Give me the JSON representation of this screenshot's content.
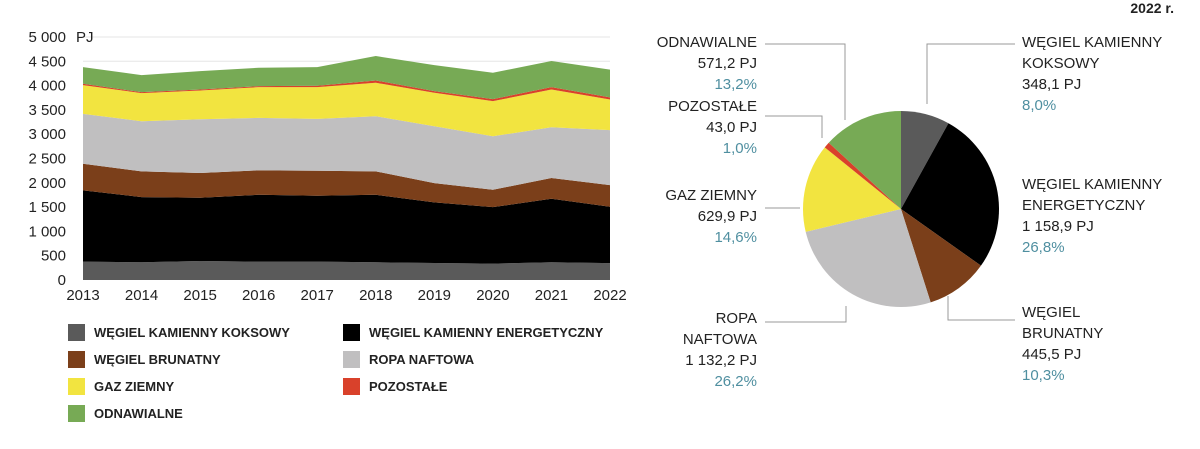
{
  "chart_data": [
    {
      "type": "area",
      "stacked": true,
      "unit_label": "PJ",
      "categories": [
        "2013",
        "2014",
        "2015",
        "2016",
        "2017",
        "2018",
        "2019",
        "2020",
        "2021",
        "2022"
      ],
      "ylim": [
        0,
        5000
      ],
      "yticks": [
        "0",
        "500",
        "1 000",
        "1 500",
        "2 000",
        "2 500",
        "3 000",
        "3 500",
        "4 000",
        "4 500",
        "5 000"
      ],
      "yticks_values": [
        0,
        500,
        1000,
        1500,
        2000,
        2500,
        3000,
        3500,
        4000,
        4500,
        5000
      ],
      "grid": true,
      "legend_placement": "bottom",
      "series": [
        {
          "name": "WĘGIEL KAMIENNY KOKSOWY",
          "color": "#5a5a5a",
          "values": [
            378,
            365,
            392,
            378,
            378,
            365,
            351,
            337,
            365,
            348.1
          ]
        },
        {
          "name": "WĘGIEL KAMIENNY ENERGETYCZNY",
          "color": "#000000",
          "values": [
            1465,
            1341,
            1300,
            1376,
            1355,
            1389,
            1245,
            1162,
            1306,
            1158.9
          ]
        },
        {
          "name": "WĘGIEL BRUNATNY",
          "color": "#7b3f1a",
          "values": [
            550,
            529,
            509,
            502,
            516,
            481,
            398,
            358,
            427,
            445.5
          ]
        },
        {
          "name": "ROPA NAFTOWA",
          "color": "#c0bfc0",
          "values": [
            1025,
            1032,
            1107,
            1080,
            1066,
            1135,
            1170,
            1100,
            1045,
            1132.2
          ]
        },
        {
          "name": "GAZ ZIEMNY",
          "color": "#f2e440",
          "values": [
            592,
            578,
            592,
            632,
            653,
            688,
            688,
            723,
            777,
            629.9
          ]
        },
        {
          "name": "POZOSTAŁE",
          "color": "#d9412b",
          "values": [
            27,
            20,
            20,
            21,
            28,
            48,
            34,
            41,
            48,
            43.0
          ]
        },
        {
          "name": "ODNAWIALNE",
          "color": "#77aa55",
          "values": [
            344,
            351,
            378,
            378,
            385,
            502,
            536,
            543,
            537,
            571.2
          ]
        }
      ]
    },
    {
      "type": "pie",
      "title": "2022 r.",
      "slices": [
        {
          "name": "WĘGIEL KAMIENNY KOKSOWY",
          "value": 348.1,
          "value_label": "348,1 PJ",
          "percent": "8,0%",
          "color": "#5a5a5a"
        },
        {
          "name": "WĘGIEL KAMIENNY ENERGETYCZNY",
          "value": 1158.9,
          "value_label": "1 158,9 PJ",
          "percent": "26,8%",
          "color": "#000000"
        },
        {
          "name": "WĘGIEL BRUNATNY",
          "value": 445.5,
          "value_label": "445,5 PJ",
          "percent": "10,3%",
          "color": "#7b3f1a"
        },
        {
          "name": "ROPA NAFTOWA",
          "value": 1132.2,
          "value_label": "1 132,2 PJ",
          "percent": "26,2%",
          "color": "#c0bfc0"
        },
        {
          "name": "GAZ ZIEMNY",
          "value": 629.9,
          "value_label": "629,9 PJ",
          "percent": "14,6%",
          "color": "#f2e440"
        },
        {
          "name": "POZOSTAŁE",
          "value": 43.0,
          "value_label": "43,0 PJ",
          "percent": "1,0%",
          "color": "#d9412b"
        },
        {
          "name": "ODNAWIALNE",
          "value": 571.2,
          "value_label": "571,2 PJ",
          "percent": "13,2%",
          "color": "#77aa55"
        }
      ]
    }
  ],
  "pie_labels": {
    "koks": [
      "WĘGIEL KAMIENNY",
      "KOKSOWY"
    ],
    "energ": [
      "WĘGIEL KAMIENNY",
      "ENERGETYCZNY"
    ],
    "brun": [
      "WĘGIEL",
      "BRUNATNY"
    ],
    "ropa": [
      "ROPA",
      "NAFTOWA"
    ]
  }
}
